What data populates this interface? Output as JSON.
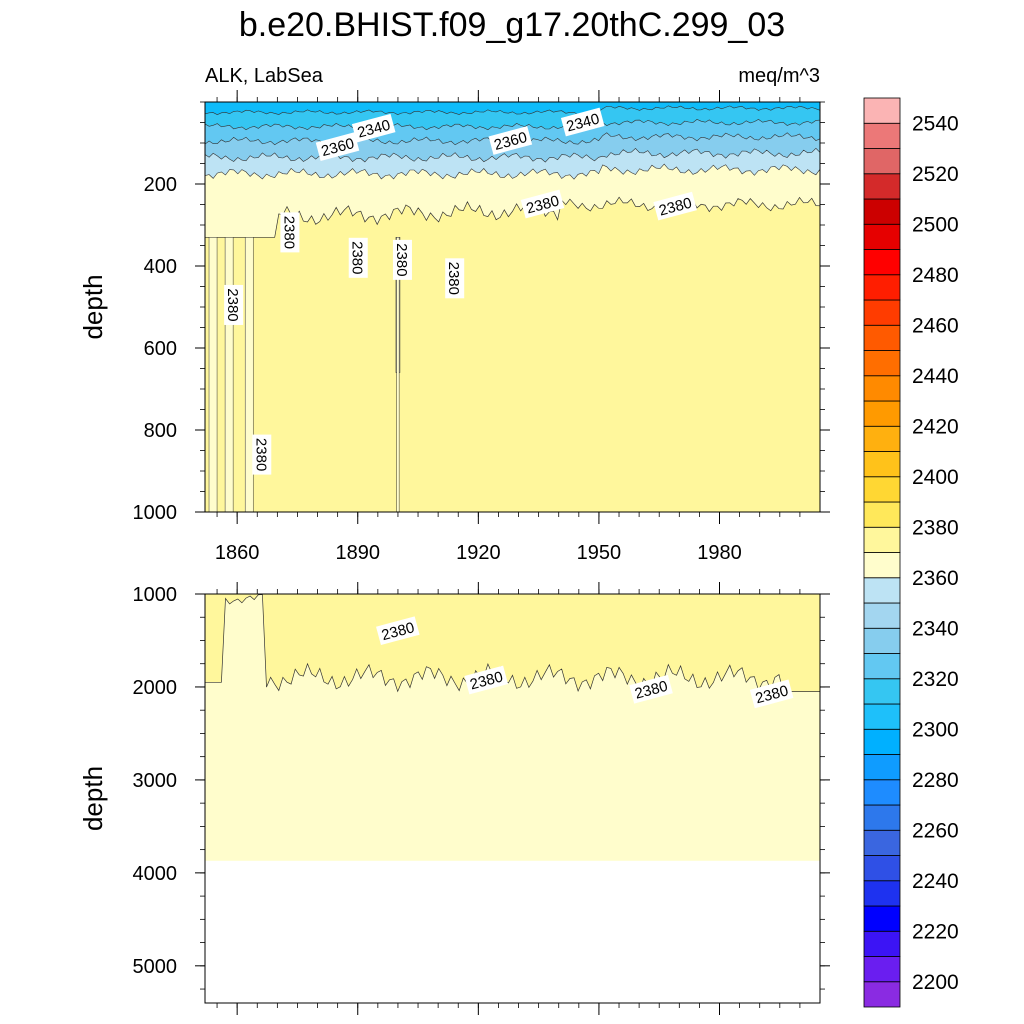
{
  "chart_data": {
    "type": "contour",
    "title": "b.e20.BHIST.f09_g17.20thC.299_03",
    "variable_label": "ALK, LabSea",
    "units_label": "meq/m^3",
    "x_ticks": [
      1860,
      1890,
      1920,
      1950,
      1980
    ],
    "x_range": [
      1852,
      2005
    ],
    "panels": [
      {
        "id": "upper",
        "ylabel": "depth",
        "ylim": [
          0,
          1000
        ],
        "y_ticks": [
          200,
          400,
          600,
          800,
          1000
        ],
        "show_x_tick_labels": true,
        "contour_labels": [
          {
            "text": "2340",
            "x": 1894,
            "y": 65
          },
          {
            "text": "2340",
            "x": 1946,
            "y": 50
          },
          {
            "text": "2360",
            "x": 1885,
            "y": 110
          },
          {
            "text": "2360",
            "x": 1928,
            "y": 95
          },
          {
            "text": "2380",
            "x": 1873,
            "y": 318
          },
          {
            "text": "2380",
            "x": 1890,
            "y": 380
          },
          {
            "text": "2380",
            "x": 1901,
            "y": 385
          },
          {
            "text": "2380",
            "x": 1914,
            "y": 430
          },
          {
            "text": "2380",
            "x": 1859,
            "y": 495
          },
          {
            "text": "2380",
            "x": 1936,
            "y": 250
          },
          {
            "text": "2380",
            "x": 1969,
            "y": 255
          },
          {
            "text": "2380",
            "x": 1866,
            "y": 860
          }
        ]
      },
      {
        "id": "lower",
        "ylabel": "depth",
        "ylim": [
          1000,
          5400
        ],
        "y_ticks": [
          1000,
          2000,
          3000,
          4000,
          5000
        ],
        "show_x_tick_labels": false,
        "ocean_bottom_depth": 3870,
        "contour_labels": [
          {
            "text": "2380",
            "x": 1900,
            "y": 1400
          },
          {
            "text": "2380",
            "x": 1922,
            "y": 1930
          },
          {
            "text": "2380",
            "x": 1963,
            "y": 2030
          },
          {
            "text": "2380",
            "x": 1993,
            "y": 2080
          }
        ]
      }
    ],
    "colorbar": {
      "levels": [
        2200,
        2210,
        2220,
        2230,
        2240,
        2250,
        2260,
        2270,
        2280,
        2290,
        2300,
        2310,
        2320,
        2330,
        2340,
        2350,
        2360,
        2370,
        2380,
        2390,
        2400,
        2410,
        2420,
        2430,
        2440,
        2450,
        2460,
        2470,
        2480,
        2490,
        2500,
        2510,
        2520,
        2530,
        2540,
        2550
      ],
      "labels": [
        "2200",
        "2220",
        "2240",
        "2260",
        "2280",
        "2300",
        "2320",
        "2340",
        "2360",
        "2380",
        "2400",
        "2420",
        "2440",
        "2460",
        "2480",
        "2500",
        "2520",
        "2540"
      ],
      "colors": [
        "#8a2be2",
        "#6a1ef0",
        "#3c14f5",
        "#0000ff",
        "#1e32f0",
        "#2f50e6",
        "#3a66e0",
        "#2d78ec",
        "#1e8cff",
        "#0f9cff",
        "#00b0ff",
        "#1ec0fa",
        "#35c6f2",
        "#62c8f2",
        "#86cdee",
        "#a3d6f0",
        "#bde3f4",
        "#fffdcc",
        "#fff79c",
        "#ffe85a",
        "#ffd733",
        "#ffc21a",
        "#ffb00f",
        "#ff9a00",
        "#ff8a00",
        "#ff6e00",
        "#ff5a00",
        "#ff3c00",
        "#ff1e00",
        "#ff0000",
        "#e60000",
        "#cc0000",
        "#d42a2a",
        "#e06666",
        "#ec7878",
        "#fbb4b4"
      ]
    },
    "fill_colors": {
      "shallow_2320": "#0fbcfa",
      "shallow_2330": "#35c6f2",
      "shallow_2340": "#62c8f2",
      "shallow_2350": "#86cdee",
      "shallow_2360": "#bde3f4",
      "band_2370": "#fffdcc",
      "band_2380": "#fff79c"
    }
  }
}
